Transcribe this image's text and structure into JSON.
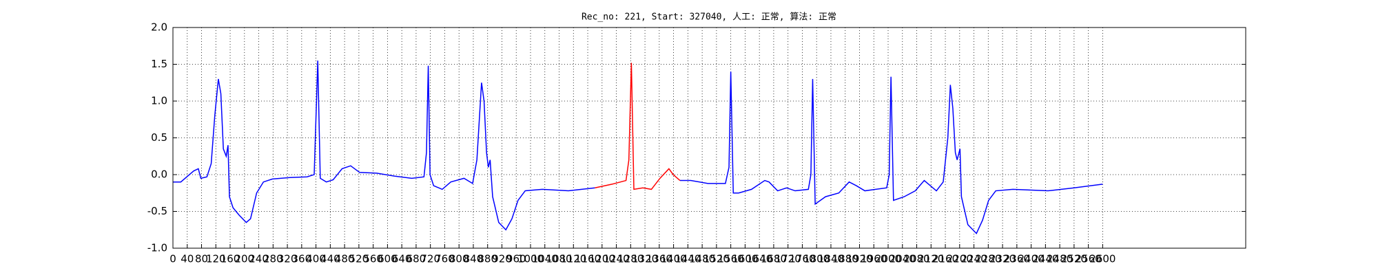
{
  "chart_data": {
    "type": "line",
    "title": "Rec_no: 221, Start: 327040, 人工: 正常, 算法: 正常",
    "x": [
      0,
      22,
      58,
      71,
      78,
      95,
      107,
      117,
      127,
      134,
      141,
      149,
      154,
      158,
      168,
      185,
      205,
      217,
      234,
      253,
      278,
      327,
      375,
      395,
      405,
      412,
      429,
      448,
      473,
      497,
      522,
      570,
      619,
      668,
      702,
      709,
      714,
      719,
      729,
      753,
      777,
      814,
      838,
      850,
      863,
      870,
      877,
      882,
      887,
      894,
      911,
      931,
      948,
      965,
      985,
      1033,
      1106,
      1180,
      1228,
      1267,
      1275,
      1282,
      1289,
      1314,
      1338,
      1362,
      1387,
      1399,
      1418,
      1448,
      1496,
      1545,
      1555,
      1560,
      1567,
      1582,
      1618,
      1655,
      1667,
      1691,
      1716,
      1740,
      1777,
      1784,
      1789,
      1796,
      1825,
      1862,
      1891,
      1911,
      1935,
      1996,
      2003,
      2008,
      2015,
      2045,
      2076,
      2101,
      2118,
      2135,
      2154,
      2167,
      2174,
      2181,
      2188,
      2193,
      2201,
      2205,
      2223,
      2247,
      2264,
      2281,
      2301,
      2349,
      2447,
      2520,
      2600
    ],
    "series": [
      {
        "color": "#0000ff",
        "values": [
          -0.1,
          -0.1,
          0.05,
          0.08,
          -0.05,
          -0.03,
          0.15,
          0.8,
          1.3,
          1.1,
          0.35,
          0.25,
          0.4,
          -0.3,
          -0.45,
          -0.55,
          -0.65,
          -0.6,
          -0.25,
          -0.1,
          -0.06,
          -0.04,
          -0.03,
          0.0,
          1.55,
          -0.05,
          -0.1,
          -0.07,
          0.08,
          0.12,
          0.03,
          0.02,
          -0.02,
          -0.05,
          -0.03,
          0.3,
          1.48,
          0.0,
          -0.15,
          -0.2,
          -0.1,
          -0.05,
          -0.12,
          0.2,
          1.25,
          1.0,
          0.3,
          0.1,
          0.2,
          -0.3,
          -0.65,
          -0.75,
          -0.6,
          -0.35,
          -0.22,
          -0.2,
          -0.22,
          -0.18,
          null,
          null,
          null,
          null,
          null,
          null,
          null,
          null,
          null,
          null,
          -0.08,
          -0.08,
          -0.12,
          -0.12,
          0.1,
          1.4,
          -0.25,
          -0.25,
          -0.2,
          -0.08,
          -0.1,
          -0.22,
          -0.18,
          -0.22,
          -0.2,
          0.0,
          1.3,
          -0.4,
          -0.3,
          -0.25,
          -0.1,
          -0.15,
          -0.22,
          -0.18,
          0.0,
          1.33,
          -0.35,
          -0.3,
          -0.22,
          -0.08,
          -0.15,
          -0.22,
          -0.1,
          0.5,
          1.22,
          0.9,
          0.3,
          0.2,
          0.35,
          -0.3,
          -0.68,
          -0.8,
          -0.62,
          -0.35,
          -0.22,
          -0.2,
          -0.22,
          -0.18,
          -0.13
        ]
      },
      {
        "color": "#ff0000",
        "values": [
          null,
          null,
          null,
          null,
          null,
          null,
          null,
          null,
          null,
          null,
          null,
          null,
          null,
          null,
          null,
          null,
          null,
          null,
          null,
          null,
          null,
          null,
          null,
          null,
          null,
          null,
          null,
          null,
          null,
          null,
          null,
          null,
          null,
          null,
          null,
          null,
          null,
          null,
          null,
          null,
          null,
          null,
          null,
          null,
          null,
          null,
          null,
          null,
          null,
          null,
          null,
          null,
          null,
          null,
          null,
          null,
          null,
          -0.18,
          -0.13,
          -0.08,
          0.2,
          1.52,
          -0.2,
          -0.18,
          -0.2,
          -0.05,
          0.08,
          0.0,
          -0.08,
          null,
          null,
          null,
          null,
          null,
          null,
          null,
          null,
          null,
          null,
          null,
          null,
          null,
          null,
          null,
          null,
          null,
          null,
          null,
          null,
          null,
          null,
          null,
          null,
          null,
          null,
          null,
          null,
          null,
          null,
          null,
          null,
          null,
          null,
          null,
          null,
          null,
          null,
          null,
          null,
          null,
          null,
          null,
          null,
          null,
          null,
          null,
          null
        ]
      }
    ],
    "xlim": [
      0,
      3000
    ],
    "xticks": [
      0,
      40,
      80,
      120,
      160,
      200,
      240,
      280,
      320,
      360,
      400,
      440,
      480,
      520,
      560,
      600,
      640,
      680,
      720,
      760,
      800,
      840,
      880,
      920,
      960,
      1000,
      1040,
      1080,
      1120,
      1160,
      1200,
      1240,
      1280,
      1320,
      1360,
      1400,
      1440,
      1480,
      1520,
      1560,
      1600,
      1640,
      1680,
      1720,
      1760,
      1800,
      1840,
      1880,
      1920,
      1960,
      2000,
      2040,
      2080,
      2120,
      2160,
      2200,
      2240,
      2280,
      2320,
      2360,
      2400,
      2440,
      2480,
      2520,
      2560,
      2600
    ],
    "ylim": [
      -1,
      2
    ],
    "yticks": [
      {
        "value": -1,
        "label": "-1.0"
      },
      -0.5,
      {
        "value": 0,
        "label": "0.0"
      },
      0.5,
      {
        "value": 1,
        "label": "1.0"
      },
      1.5,
      {
        "value": 2,
        "label": "2.0"
      }
    ],
    "grid": true
  }
}
